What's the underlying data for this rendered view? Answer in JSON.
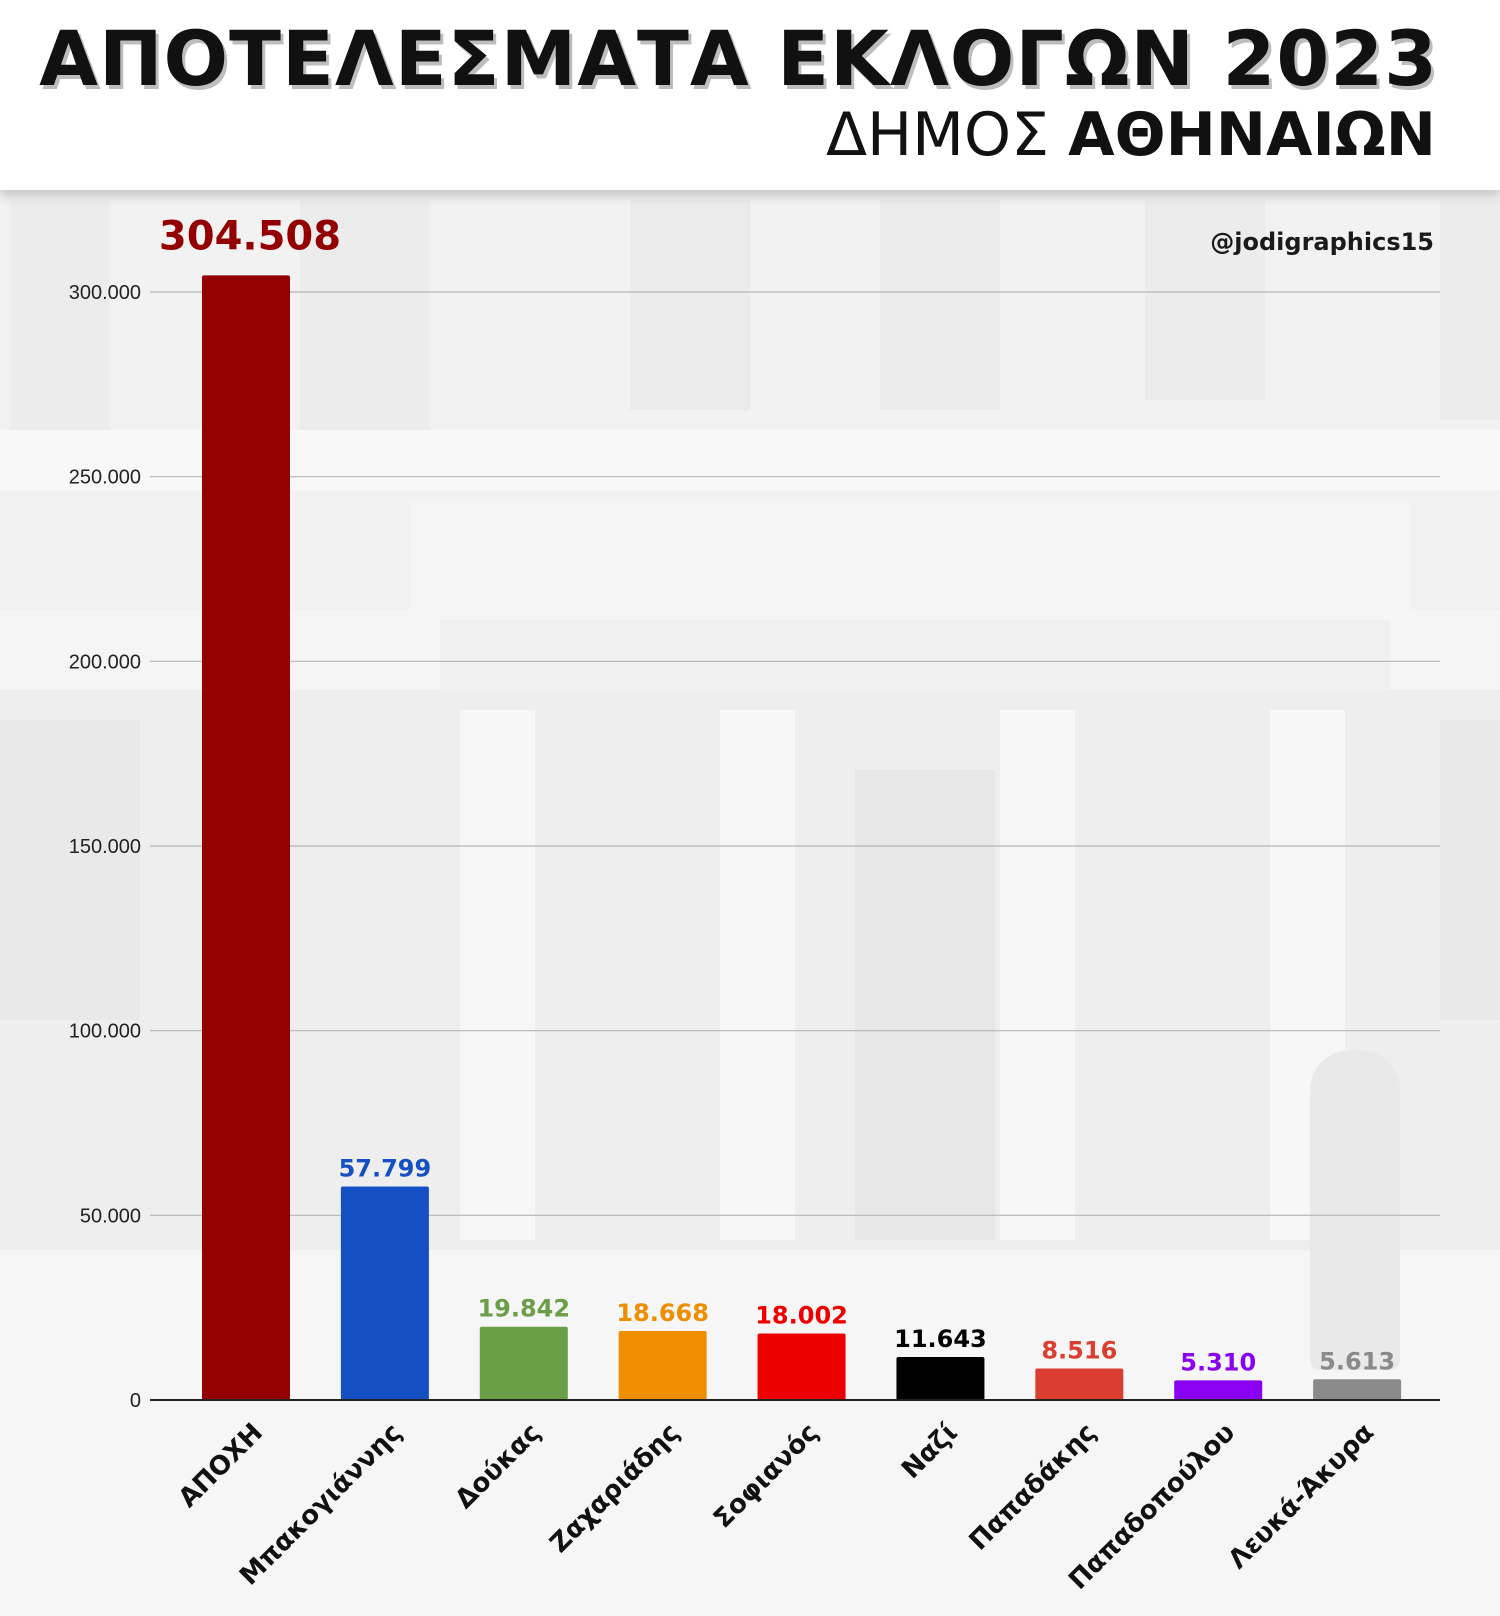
{
  "header": {
    "title": "ΑΠΟΤΕΛΕΣΜΑΤΑ ΕΚΛΟΓΩΝ 2023",
    "subtitle_light": "ΔΗΜΟΣ",
    "subtitle_bold": "ΑΘΗΝΑΙΩΝ"
  },
  "credit": "@jodigraphics15",
  "chart_data": {
    "type": "bar",
    "title": "ΑΠΟΤΕΛΕΣΜΑΤΑ ΕΚΛΟΓΩΝ 2023",
    "subtitle": "ΔΗΜΟΣ ΑΘΗΝΑΙΩΝ",
    "xlabel": "",
    "ylabel": "",
    "ylim": [
      0,
      300000
    ],
    "grid": true,
    "y_ticks": [
      0,
      50000,
      100000,
      150000,
      200000,
      250000,
      300000
    ],
    "y_tick_labels": [
      "0",
      "50.000",
      "100.000",
      "150.000",
      "200.000",
      "250.000",
      "300.000"
    ],
    "categories": [
      "ΑΠΟΧΗ",
      "Μπακογιάννης",
      "Δούκας",
      "Ζαχαριάδης",
      "Σοφιανός",
      "Ναζί",
      "Παπαδάκης",
      "Παπαδοπούλου",
      "Λευκά-Άκυρα"
    ],
    "values": [
      304508,
      57799,
      19842,
      18668,
      18002,
      11643,
      8516,
      5310,
      5613
    ],
    "value_labels": [
      "304.508",
      "57.799",
      "19.842",
      "18.668",
      "18.002",
      "11.643",
      "8.516",
      "5.310",
      "5.613"
    ],
    "colors": [
      "#940000",
      "#1450c4",
      "#6a9f48",
      "#ee8e00",
      "#ee0000",
      "#000000",
      "#d93e30",
      "#8a00f0",
      "#8a8a8a"
    ]
  }
}
